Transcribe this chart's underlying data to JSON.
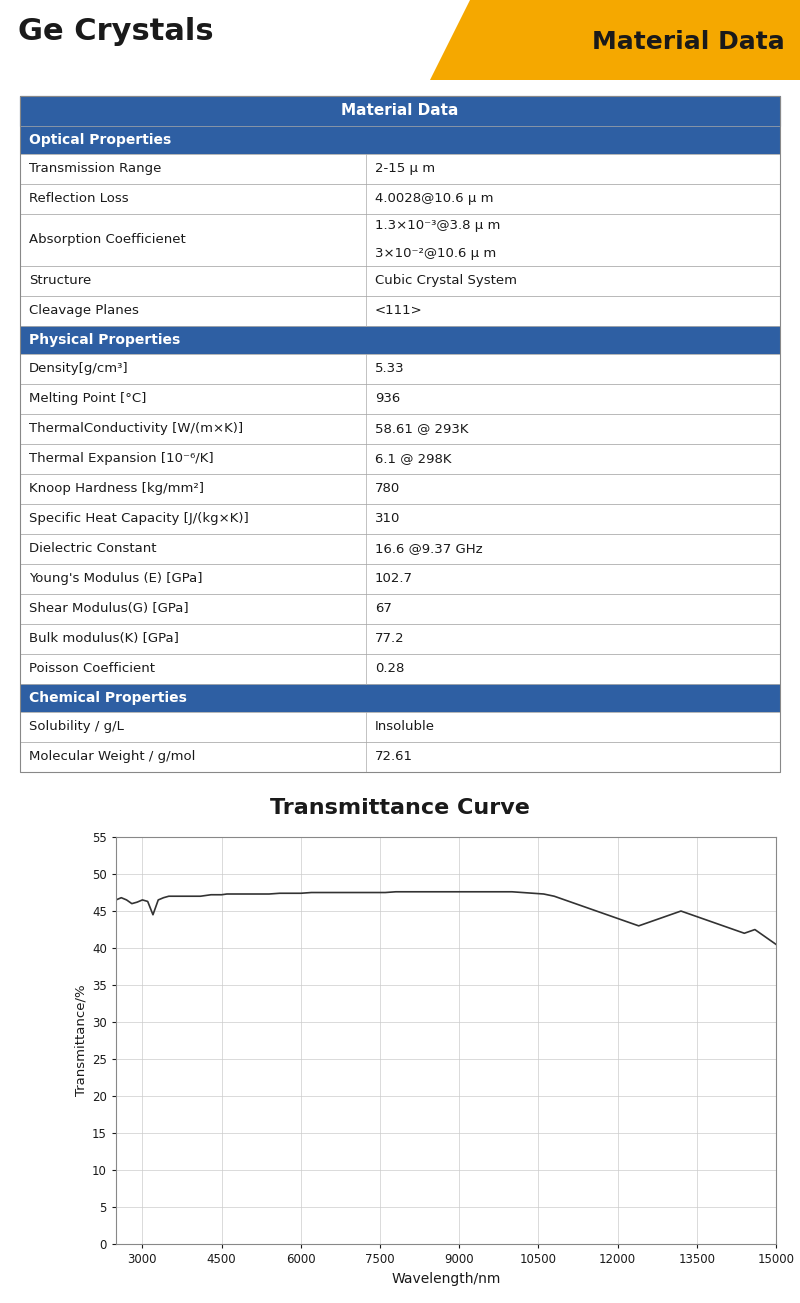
{
  "title_left": "Ge Crystals",
  "title_right": "Material Data",
  "header_color": "#2E5FA3",
  "header_text_color": "#FFFFFF",
  "section_header_color": "#2E5FA3",
  "section_header_text_color": "#FFFFFF",
  "orange_color": "#F5A800",
  "bg_color": "#FFFFFF",
  "table_border_color": "#AAAAAA",
  "table_header": "Material Data",
  "sections": [
    {
      "name": "Optical Properties",
      "rows": [
        [
          "Transmission Range",
          "2-15 μ m"
        ],
        [
          "Reflection Loss",
          "4.0028@10.6 μ m"
        ],
        [
          "Absorption Coefficienet",
          "1.3×10⁻³@3.8 μ m\n3×10⁻²@10.6 μ m"
        ],
        [
          "Structure",
          "Cubic Crystal System"
        ],
        [
          "Cleavage Planes",
          "<111>"
        ]
      ]
    },
    {
      "name": "Physical Properties",
      "rows": [
        [
          "Density[g/cm³]",
          "5.33"
        ],
        [
          "Melting Point [°C]",
          "936"
        ],
        [
          "ThermalConductivity [W/(m×K)]",
          "58.61 @ 293K"
        ],
        [
          "Thermal Expansion [10⁻⁶/K]",
          "6.1 @ 298K"
        ],
        [
          "Knoop Hardness [kg/mm²]",
          "780"
        ],
        [
          "Specific Heat Capacity [J/(kg×K)]",
          "310"
        ],
        [
          "Dielectric Constant",
          "16.6 @9.37 GHz"
        ],
        [
          "Young's Modulus (E) [GPa]",
          "102.7"
        ],
        [
          "Shear Modulus(G) [GPa]",
          "67"
        ],
        [
          "Bulk modulus(K) [GPa]",
          "77.2"
        ],
        [
          "Poisson Coefficient",
          "0.28"
        ]
      ]
    },
    {
      "name": "Chemical Properties",
      "rows": [
        [
          "Solubility / g/L",
          "Insoluble"
        ],
        [
          "Molecular Weight / g/mol",
          "72.61"
        ]
      ]
    }
  ],
  "chart_title": "Transmittance Curve",
  "xlabel": "Wavelength/nm",
  "ylabel": "Transmittance/%",
  "xmin": 2500,
  "xmax": 15000,
  "ymin": 0,
  "ymax": 55,
  "yticks": [
    0,
    5,
    10,
    15,
    20,
    25,
    30,
    35,
    40,
    45,
    50,
    55
  ],
  "xticks": [
    3000,
    4500,
    6000,
    7500,
    9000,
    10500,
    12000,
    13500,
    15000
  ],
  "curve_color": "#333333",
  "grid_color": "#CCCCCC",
  "transmittance_x": [
    2500,
    2600,
    2700,
    2800,
    2900,
    3000,
    3100,
    3200,
    3300,
    3400,
    3500,
    3600,
    3700,
    3800,
    3900,
    4000,
    4100,
    4200,
    4300,
    4400,
    4500,
    4600,
    4700,
    4800,
    4900,
    5000,
    5200,
    5400,
    5600,
    5800,
    6000,
    6200,
    6400,
    6600,
    6800,
    7000,
    7200,
    7400,
    7600,
    7800,
    8000,
    8200,
    8400,
    8600,
    8800,
    9000,
    9200,
    9400,
    9600,
    9800,
    10000,
    10200,
    10400,
    10600,
    10800,
    11000,
    11200,
    11400,
    11600,
    11800,
    12000,
    12200,
    12400,
    12600,
    12800,
    13000,
    13200,
    13400,
    13600,
    13800,
    14000,
    14200,
    14400,
    14600,
    14800,
    15000
  ],
  "transmittance_y": [
    46.5,
    46.8,
    46.5,
    46.0,
    46.2,
    46.5,
    46.3,
    44.5,
    46.5,
    46.8,
    47.0,
    47.0,
    47.0,
    47.0,
    47.0,
    47.0,
    47.0,
    47.1,
    47.2,
    47.2,
    47.2,
    47.3,
    47.3,
    47.3,
    47.3,
    47.3,
    47.3,
    47.3,
    47.4,
    47.4,
    47.4,
    47.5,
    47.5,
    47.5,
    47.5,
    47.5,
    47.5,
    47.5,
    47.5,
    47.6,
    47.6,
    47.6,
    47.6,
    47.6,
    47.6,
    47.6,
    47.6,
    47.6,
    47.6,
    47.6,
    47.6,
    47.5,
    47.4,
    47.3,
    47.0,
    46.5,
    46.0,
    45.5,
    45.0,
    44.5,
    44.0,
    43.5,
    43.0,
    43.5,
    44.0,
    44.5,
    45.0,
    44.5,
    44.0,
    43.5,
    43.0,
    42.5,
    42.0,
    42.5,
    41.5,
    40.5
  ]
}
